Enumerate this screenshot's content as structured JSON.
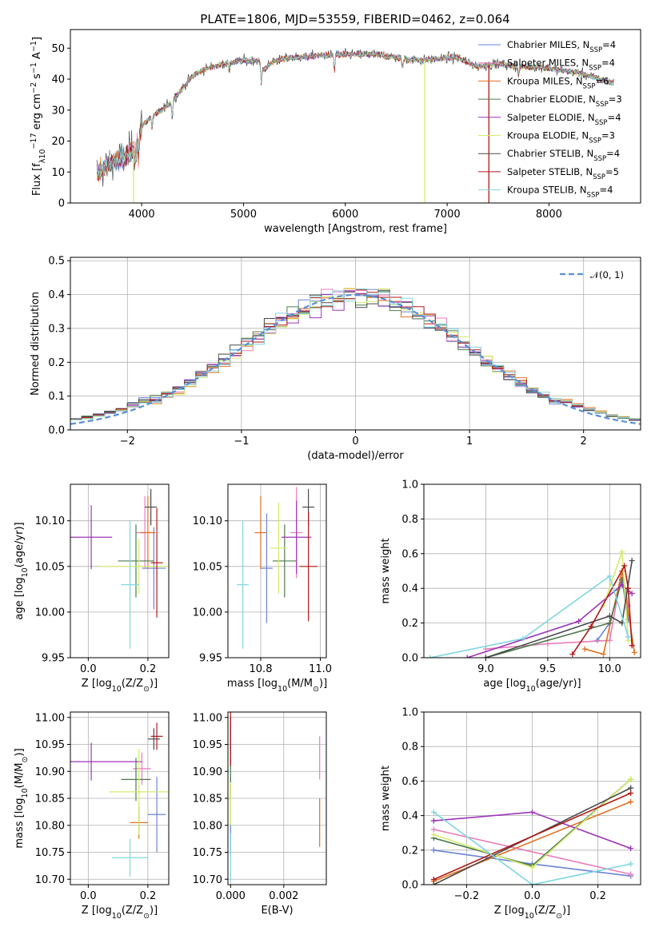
{
  "title": "PLATE=1806, MJD=53559, FIBERID=0462, z=0.064",
  "model_names": [
    "Chabrier MILES",
    "Salpeter MILES",
    "Kroupa MILES",
    "Chabrier ELODIE",
    "Salpeter ELODIE",
    "Kroupa ELODIE",
    "Chabrier STELIB",
    "Salpeter STELIB",
    "Kroupa STELIB"
  ],
  "model_nssp": [
    "4",
    "4",
    "6",
    "3",
    "4",
    "3",
    "4",
    "5",
    "4"
  ],
  "colors": [
    "#6a84d6",
    "#e87ebb",
    "#e07020",
    "#4d7a4d",
    "#9d34b8",
    "#d4eb6a",
    "#4a4a4a",
    "#b01818",
    "#7fd6e0"
  ],
  "legend_nssp_prefix": "N",
  "legend_nssp_sub": "SSP",
  "chart_data": [
    {
      "id": "spectrum",
      "type": "line",
      "xlabel": "wavelength [Angstrom, rest frame]",
      "ylabel": "Flux [f",
      "ylabel_parts": [
        "λ",
        "10",
        "−17",
        " erg cm",
        "−2",
        " s",
        "−1",
        " A",
        "−1",
        "]"
      ],
      "xlim": [
        3300,
        8900
      ],
      "ylim": [
        0,
        56
      ],
      "xticks": [
        4000,
        5000,
        6000,
        7000,
        8000
      ],
      "yticks": [
        0,
        10,
        20,
        30,
        40,
        50
      ],
      "continuum": [
        [
          3580,
          10
        ],
        [
          3700,
          13
        ],
        [
          3850,
          15
        ],
        [
          3950,
          19
        ],
        [
          4000,
          25
        ],
        [
          4100,
          28
        ],
        [
          4200,
          30
        ],
        [
          4300,
          33
        ],
        [
          4400,
          37
        ],
        [
          4500,
          41
        ],
        [
          4600,
          43
        ],
        [
          4700,
          44
        ],
        [
          4800,
          45
        ],
        [
          4900,
          45.5
        ],
        [
          5000,
          46
        ],
        [
          5150,
          46
        ],
        [
          5200,
          43
        ],
        [
          5300,
          46
        ],
        [
          5500,
          47
        ],
        [
          5700,
          47.5
        ],
        [
          5900,
          48
        ],
        [
          6100,
          48
        ],
        [
          6300,
          48
        ],
        [
          6500,
          47
        ],
        [
          6700,
          46
        ],
        [
          6900,
          46.5
        ],
        [
          7100,
          47
        ],
        [
          7300,
          44
        ],
        [
          7500,
          45
        ],
        [
          7700,
          44
        ],
        [
          7900,
          44
        ],
        [
          8100,
          43
        ],
        [
          8300,
          42
        ],
        [
          8500,
          40
        ],
        [
          8600,
          39
        ]
      ],
      "absorption": [
        [
          3934,
          5
        ],
        [
          3969,
          6
        ],
        [
          4102,
          4
        ],
        [
          4300,
          5
        ],
        [
          4861,
          3
        ],
        [
          5175,
          6
        ],
        [
          5893,
          5
        ],
        [
          6563,
          3
        ],
        [
          7700,
          3
        ]
      ],
      "drops": [
        [
          3920,
          0
        ],
        [
          6780,
          0
        ],
        [
          7410,
          0
        ]
      ]
    },
    {
      "id": "residuals",
      "type": "area",
      "xlabel": "(data-model)/error",
      "ylabel": "Normed distribution",
      "xlim": [
        -2.5,
        2.5
      ],
      "ylim": [
        0,
        0.51
      ],
      "xticks": [
        -2,
        -1,
        0,
        1,
        2
      ],
      "xtick_labels": [
        "−2",
        "−1",
        "0",
        "1",
        "2"
      ],
      "yticks": [
        0,
        0.1,
        0.2,
        0.3,
        0.4,
        0.5
      ],
      "ytick_labels": [
        "0.0",
        "0.1",
        "0.2",
        "0.3",
        "0.4",
        "0.5"
      ],
      "reference_label": "𝒩(0, 1)",
      "bin_width": 0.1
    },
    {
      "id": "age-vs-Z",
      "type": "scatter",
      "xlabel": "Z [log",
      "xlabel_parts": [
        "10",
        "(Z/Z",
        "⊙",
        ")]"
      ],
      "ylabel": "age  [log",
      "ylabel_parts": [
        "10",
        "(age/yr)]"
      ],
      "xlim": [
        -0.06,
        0.27
      ],
      "ylim": [
        9.95,
        10.14
      ],
      "xticks": [
        0.0,
        0.2
      ],
      "xtick_labels": [
        "0.0",
        "0.2"
      ],
      "yticks": [
        9.95,
        10.0,
        10.05,
        10.1
      ],
      "ytick_labels": [
        "9.95",
        "10.00",
        "10.05",
        "10.10"
      ],
      "points": [
        {
          "x": 0.22,
          "y": 10.048,
          "xerr": 0.04,
          "yerr": 0.045
        },
        {
          "x": 0.19,
          "y": 10.087,
          "xerr": 0.03,
          "yerr": 0.04
        },
        {
          "x": 0.2,
          "y": 10.087,
          "xerr": 0.025,
          "yerr": 0.04
        },
        {
          "x": 0.16,
          "y": 10.056,
          "xerr": 0.06,
          "yerr": 0.04
        },
        {
          "x": 0.01,
          "y": 10.082,
          "xerr": 0.07,
          "yerr": 0.035
        },
        {
          "x": 0.17,
          "y": 10.05,
          "xerr": 0.13,
          "yerr": 0.03
        },
        {
          "x": 0.21,
          "y": 10.115,
          "xerr": 0.02,
          "yerr": 0.02
        },
        {
          "x": 0.23,
          "y": 10.054,
          "xerr": 0.02,
          "yerr": 0.06
        },
        {
          "x": 0.14,
          "y": 10.03,
          "xerr": 0.03,
          "yerr": 0.07
        }
      ]
    },
    {
      "id": "age-vs-mass",
      "type": "scatter",
      "xlabel": "mass [log",
      "xlabel_parts": [
        "10",
        "(M/M",
        "⊙",
        ")]"
      ],
      "ylabel": "",
      "xlim": [
        10.69,
        11.02
      ],
      "ylim": [
        9.95,
        10.14
      ],
      "xticks": [
        10.8,
        11.0
      ],
      "xtick_labels": [
        "10.8",
        "11.0"
      ],
      "yticks": [
        9.95,
        10.0,
        10.05,
        10.1
      ],
      "ytick_labels": [
        "9.95",
        "10.00",
        "10.05",
        "10.10"
      ],
      "points": [
        {
          "x": 10.82,
          "y": 10.048,
          "xerr": 0.02,
          "yerr": 0.06
        },
        {
          "x": 10.92,
          "y": 10.087,
          "xerr": 0.02,
          "yerr": 0.05
        },
        {
          "x": 10.8,
          "y": 10.087,
          "xerr": 0.02,
          "yerr": 0.04
        },
        {
          "x": 10.88,
          "y": 10.056,
          "xerr": 0.04,
          "yerr": 0.04
        },
        {
          "x": 10.92,
          "y": 10.082,
          "xerr": 0.05,
          "yerr": 0.04
        },
        {
          "x": 10.86,
          "y": 10.07,
          "xerr": 0.03,
          "yerr": 0.05
        },
        {
          "x": 10.96,
          "y": 10.115,
          "xerr": 0.02,
          "yerr": 0.02
        },
        {
          "x": 10.96,
          "y": 10.05,
          "xerr": 0.03,
          "yerr": 0.06
        },
        {
          "x": 10.74,
          "y": 10.03,
          "xerr": 0.02,
          "yerr": 0.07
        }
      ]
    },
    {
      "id": "weight-vs-age",
      "type": "line",
      "xlabel": "age  [log",
      "xlabel_parts": [
        "10",
        "(age/yr)]"
      ],
      "ylabel": "mass weight",
      "xlim": [
        8.5,
        10.25
      ],
      "ylim": [
        0,
        1
      ],
      "xticks": [
        9.0,
        9.5,
        10.0
      ],
      "xtick_labels": [
        "9.0",
        "9.5",
        "10.0"
      ],
      "yticks": [
        0,
        0.2,
        0.4,
        0.6,
        0.8,
        1.0
      ],
      "ytick_labels": [
        "0.0",
        "0.2",
        "0.4",
        "0.6",
        "0.8",
        "1.0"
      ],
      "series": [
        {
          "x": [
            9.9,
            10.0,
            10.1,
            10.15
          ],
          "y": [
            0.1,
            0.2,
            0.45,
            0.22
          ]
        },
        {
          "x": [
            9.0,
            9.5,
            10.0,
            10.1,
            10.15
          ],
          "y": [
            0.05,
            0.08,
            0.1,
            0.5,
            0.3
          ]
        },
        {
          "x": [
            9.8,
            9.95,
            10.1,
            10.2
          ],
          "y": [
            0.05,
            0.02,
            0.5,
            0.03
          ]
        },
        {
          "x": [
            9.0,
            10.0,
            10.1
          ],
          "y": [
            0.0,
            0.2,
            0.45
          ]
        },
        {
          "x": [
            8.85,
            9.75,
            10.1,
            10.18
          ],
          "y": [
            0.0,
            0.21,
            0.42,
            0.37
          ]
        },
        {
          "x": [
            9.95,
            10.1,
            10.15
          ],
          "y": [
            0.3,
            0.61,
            0.1
          ]
        },
        {
          "x": [
            9.0,
            10.0,
            10.1,
            10.18
          ],
          "y": [
            0.0,
            0.24,
            0.2,
            0.56
          ]
        },
        {
          "x": [
            9.7,
            9.85,
            10.12,
            10.15,
            10.18
          ],
          "y": [
            0.02,
            0.18,
            0.53,
            0.4,
            0.07
          ]
        },
        {
          "x": [
            8.55,
            9.3,
            10.0,
            10.15
          ],
          "y": [
            0.0,
            0.11,
            0.47,
            0.12
          ]
        }
      ]
    },
    {
      "id": "mass-vs-Z",
      "type": "scatter",
      "xlabel": "Z [log",
      "xlabel_parts": [
        "10",
        "(Z/Z",
        "⊙",
        ")]"
      ],
      "ylabel": "mass [log",
      "ylabel_parts": [
        "10",
        "(M/M",
        "⊙",
        ")]"
      ],
      "xlim": [
        -0.06,
        0.27
      ],
      "ylim": [
        10.69,
        11.01
      ],
      "xticks": [
        0.0,
        0.2
      ],
      "xtick_labels": [
        "0.0",
        "0.2"
      ],
      "yticks": [
        10.7,
        10.75,
        10.8,
        10.85,
        10.9,
        10.95,
        11.0
      ],
      "ytick_labels": [
        "10.70",
        "10.75",
        "10.80",
        "10.85",
        "10.90",
        "10.95",
        "11.00"
      ],
      "points": [
        {
          "x": 0.23,
          "y": 10.82,
          "xerr": 0.03,
          "yerr": 0.07
        },
        {
          "x": 0.18,
          "y": 10.905,
          "xerr": 0.03,
          "yerr": 0.03
        },
        {
          "x": 0.17,
          "y": 10.805,
          "xerr": 0.03,
          "yerr": 0.03
        },
        {
          "x": 0.16,
          "y": 10.885,
          "xerr": 0.05,
          "yerr": 0.04
        },
        {
          "x": 0.01,
          "y": 10.918,
          "xerr": 0.17,
          "yerr": 0.035
        },
        {
          "x": 0.17,
          "y": 10.862,
          "xerr": 0.1,
          "yerr": 0.08
        },
        {
          "x": 0.22,
          "y": 10.96,
          "xerr": 0.02,
          "yerr": 0.02
        },
        {
          "x": 0.23,
          "y": 10.965,
          "xerr": 0.02,
          "yerr": 0.025
        },
        {
          "x": 0.14,
          "y": 10.74,
          "xerr": 0.06,
          "yerr": 0.035
        }
      ]
    },
    {
      "id": "mass-vs-EBV",
      "type": "scatter",
      "xlabel": "E(B-V)",
      "ylabel": "",
      "xlim": [
        -0.0001,
        0.0036
      ],
      "ylim": [
        10.69,
        11.01
      ],
      "xticks": [
        0.0,
        0.002
      ],
      "xtick_labels": [
        "0.000",
        "0.002"
      ],
      "yticks": [
        10.7,
        10.75,
        10.8,
        10.85,
        10.9,
        10.95,
        11.0
      ],
      "ytick_labels": [
        "10.70",
        "10.75",
        "10.80",
        "10.85",
        "10.90",
        "10.95",
        "11.00"
      ],
      "points": [
        {
          "x": 0.0,
          "y": 10.82,
          "xerr": 0,
          "yerr": 0.07
        },
        {
          "x": 0.00335,
          "y": 10.925,
          "xerr": 0,
          "yerr": 0.04
        },
        {
          "x": 0.00335,
          "y": 10.805,
          "xerr": 0,
          "yerr": 0.045
        },
        {
          "x": 0.0,
          "y": 10.885,
          "xerr": 0,
          "yerr": 0.04
        },
        {
          "x": 0.0,
          "y": 10.96,
          "xerr": 0,
          "yerr": 0.04
        },
        {
          "x": 0.0,
          "y": 10.84,
          "xerr": 0,
          "yerr": 0.04
        },
        {
          "x": 0.0,
          "y": 10.96,
          "xerr": 0,
          "yerr": 0.03
        },
        {
          "x": 0.0,
          "y": 10.96,
          "xerr": 0,
          "yerr": 0.05
        },
        {
          "x": 0.0,
          "y": 10.74,
          "xerr": 0,
          "yerr": 0.045
        }
      ]
    },
    {
      "id": "weight-vs-Z",
      "type": "line",
      "xlabel": "Z [log",
      "xlabel_parts": [
        "10",
        "(Z/Z",
        "⊙",
        ")]"
      ],
      "ylabel": "mass weight",
      "xlim": [
        -0.33,
        0.33
      ],
      "ylim": [
        0,
        1
      ],
      "xticks": [
        -0.2,
        0.0,
        0.2
      ],
      "xtick_labels": [
        "−0.2",
        "0.0",
        "0.2"
      ],
      "yticks": [
        0,
        0.2,
        0.4,
        0.6,
        0.8,
        1.0
      ],
      "ytick_labels": [
        "0.0",
        "0.2",
        "0.4",
        "0.6",
        "0.8",
        "1.0"
      ],
      "series": [
        {
          "x": [
            -0.3,
            0.0,
            0.3
          ],
          "y": [
            0.2,
            0.12,
            0.05
          ]
        },
        {
          "x": [
            -0.3,
            0.3
          ],
          "y": [
            0.32,
            0.06
          ]
        },
        {
          "x": [
            -0.3,
            0.3
          ],
          "y": [
            0.02,
            0.48
          ]
        },
        {
          "x": [
            -0.3,
            0.0,
            0.3
          ],
          "y": [
            0.27,
            0.11,
            0.61
          ]
        },
        {
          "x": [
            -0.3,
            0.0,
            0.3
          ],
          "y": [
            0.37,
            0.42,
            0.21
          ]
        },
        {
          "x": [
            -0.3,
            0.0,
            0.3
          ],
          "y": [
            0.29,
            0.1,
            0.61
          ]
        },
        {
          "x": [
            -0.3,
            0.3
          ],
          "y": [
            0.0,
            0.56
          ]
        },
        {
          "x": [
            -0.3,
            0.3
          ],
          "y": [
            0.03,
            0.53
          ]
        },
        {
          "x": [
            -0.3,
            0.0,
            0.3
          ],
          "y": [
            0.42,
            0.0,
            0.12
          ]
        }
      ]
    }
  ]
}
